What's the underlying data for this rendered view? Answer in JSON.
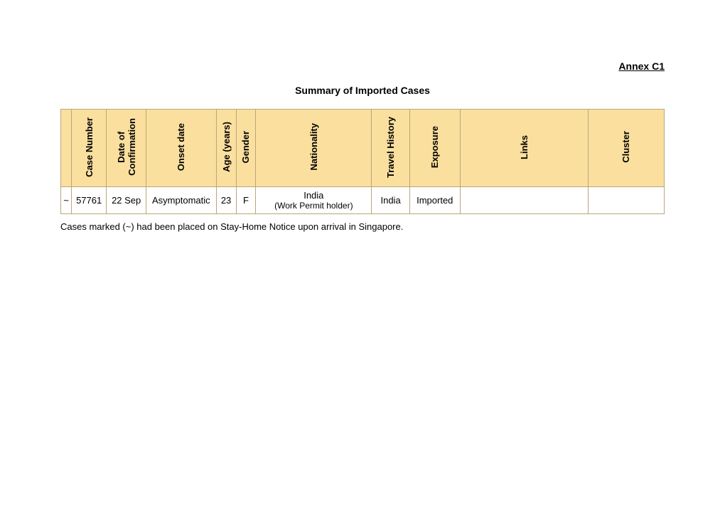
{
  "annex_label": "Annex C1",
  "title": "Summary of Imported Cases",
  "table": {
    "header_bg": "#fadf9e",
    "border_color": "#b8a77a",
    "columns": {
      "mark": "",
      "case_number": "Case Number",
      "date_confirmation": "Date of\nConfirmation",
      "onset_date": "Onset date",
      "age": "Age (years)",
      "gender": "Gender",
      "nationality": "Nationality",
      "travel_history": "Travel History",
      "exposure": "Exposure",
      "links": "Links",
      "cluster": "Cluster"
    },
    "rows": [
      {
        "mark": "~",
        "case_number": "57761",
        "date_confirmation": "22 Sep",
        "onset_date": "Asymptomatic",
        "age": "23",
        "gender": "F",
        "nationality_line1": "India",
        "nationality_line2": "(Work Permit holder)",
        "travel_history": "India",
        "exposure": "Imported",
        "links": "",
        "cluster": ""
      }
    ]
  },
  "footnote": "Cases marked (~) had been placed on Stay-Home Notice upon arrival in Singapore."
}
